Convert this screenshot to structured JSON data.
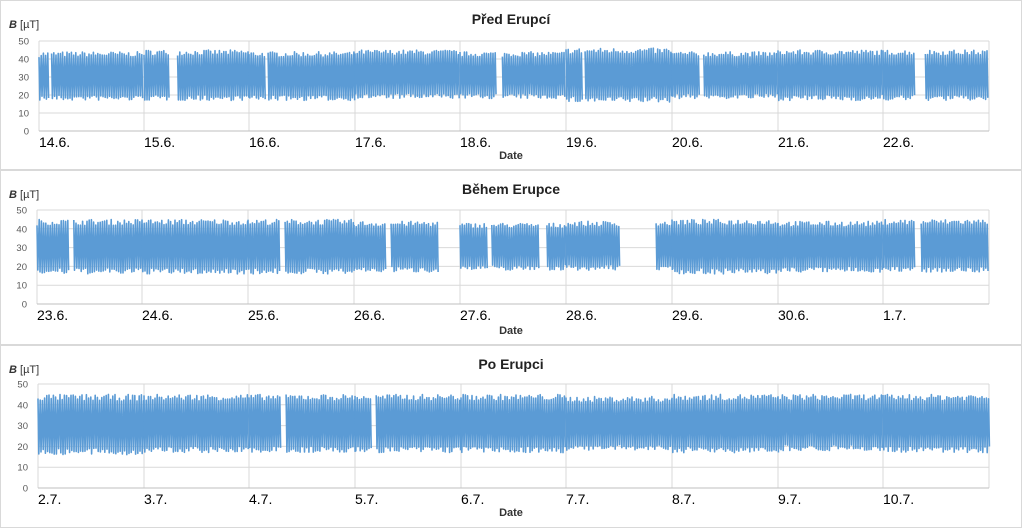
{
  "chart_data": [
    {
      "type": "line",
      "title": "Před Erupcí",
      "ylabel_symbol": "B",
      "ylabel_unit": "[µT]",
      "xlabel": "Date",
      "ylim": [
        0,
        50
      ],
      "yticks": [
        0,
        10,
        20,
        30,
        40,
        50
      ],
      "categories": [
        "14.6.",
        "15.6.",
        "16.6.",
        "17.6.",
        "18.6.",
        "19.6.",
        "20.6.",
        "21.6.",
        "22.6."
      ],
      "series": [
        {
          "color": "#5b9bd5",
          "days": [
            {
              "segments": [
                [
                  0.0,
                  0.1
                ],
                [
                  0.12,
                  1.0
                ]
              ],
              "max": 44,
              "min": 17
            },
            {
              "segments": [
                [
                  0.0,
                  0.25
                ],
                [
                  0.32,
                  1.0
                ]
              ],
              "max": 45,
              "min": 17
            },
            {
              "segments": [
                [
                  0.0,
                  0.15
                ],
                [
                  0.18,
                  1.0
                ]
              ],
              "max": 44,
              "min": 17
            },
            {
              "segments": [
                [
                  0.0,
                  1.0
                ]
              ],
              "max": 45,
              "min": 18
            },
            {
              "segments": [
                [
                  0.0,
                  0.35
                ],
                [
                  0.4,
                  1.0
                ]
              ],
              "max": 44,
              "min": 18
            },
            {
              "segments": [
                [
                  0.0,
                  0.15
                ],
                [
                  0.18,
                  1.0
                ]
              ],
              "max": 46,
              "min": 16
            },
            {
              "segments": [
                [
                  0.0,
                  0.25
                ],
                [
                  0.3,
                  1.0
                ]
              ],
              "max": 44,
              "min": 18
            },
            {
              "segments": [
                [
                  0.0,
                  1.0
                ]
              ],
              "max": 45,
              "min": 17
            },
            {
              "segments": [
                [
                  0.0,
                  0.3
                ],
                [
                  0.4,
                  1.0
                ]
              ],
              "max": 45,
              "min": 17
            }
          ]
        }
      ],
      "grid": true,
      "legend": "none"
    },
    {
      "type": "line",
      "title": "Během Erupce",
      "ylabel_symbol": "B",
      "ylabel_unit": "[µT]",
      "xlabel": "Date",
      "ylim": [
        0,
        50
      ],
      "yticks": [
        0,
        10,
        20,
        30,
        40,
        50
      ],
      "categories": [
        "23.6.",
        "24.6.",
        "25.6.",
        "26.6.",
        "27.6.",
        "28.6.",
        "29.6.",
        "30.6.",
        "1.7."
      ],
      "series": [
        {
          "color": "#5b9bd5",
          "days": [
            {
              "segments": [
                [
                  0.0,
                  0.3
                ],
                [
                  0.35,
                  1.0
                ]
              ],
              "max": 45,
              "min": 16
            },
            {
              "segments": [
                [
                  0.0,
                  1.0
                ]
              ],
              "max": 45,
              "min": 16
            },
            {
              "segments": [
                [
                  0.0,
                  0.3
                ],
                [
                  0.35,
                  1.0
                ]
              ],
              "max": 45,
              "min": 16
            },
            {
              "segments": [
                [
                  0.0,
                  0.3
                ],
                [
                  0.35,
                  0.8
                ]
              ],
              "max": 44,
              "min": 17
            },
            {
              "segments": [
                [
                  0.0,
                  0.25
                ],
                [
                  0.3,
                  0.75
                ],
                [
                  0.82,
                  1.0
                ]
              ],
              "max": 43,
              "min": 18
            },
            {
              "segments": [
                [
                  0.0,
                  0.5
                ],
                [
                  0.85,
                  1.0
                ]
              ],
              "max": 44,
              "min": 18
            },
            {
              "segments": [
                [
                  0.0,
                  1.0
                ]
              ],
              "max": 45,
              "min": 16
            },
            {
              "segments": [
                [
                  0.0,
                  1.0
                ]
              ],
              "max": 44,
              "min": 17
            },
            {
              "segments": [
                [
                  0.0,
                  0.3
                ],
                [
                  0.36,
                  1.0
                ]
              ],
              "max": 45,
              "min": 17
            }
          ]
        }
      ],
      "grid": true,
      "legend": "none"
    },
    {
      "type": "line",
      "title": "Po Erupci",
      "ylabel_symbol": "B",
      "ylabel_unit": "[µT]",
      "xlabel": "Date",
      "ylim": [
        0,
        50
      ],
      "yticks": [
        0,
        10,
        20,
        30,
        40,
        50
      ],
      "categories": [
        "2.7.",
        "3.7.",
        "4.7.",
        "5.7.",
        "6.7.",
        "7.7.",
        "8.7.",
        "9.7.",
        "10.7."
      ],
      "series": [
        {
          "color": "#5b9bd5",
          "days": [
            {
              "segments": [
                [
                  0.0,
                  1.0
                ]
              ],
              "max": 45,
              "min": 16
            },
            {
              "segments": [
                [
                  0.0,
                  1.0
                ]
              ],
              "max": 45,
              "min": 17
            },
            {
              "segments": [
                [
                  0.0,
                  0.3
                ],
                [
                  0.35,
                  1.0
                ]
              ],
              "max": 45,
              "min": 17
            },
            {
              "segments": [
                [
                  0.0,
                  0.15
                ],
                [
                  0.2,
                  1.0
                ]
              ],
              "max": 45,
              "min": 17
            },
            {
              "segments": [
                [
                  0.0,
                  1.0
                ]
              ],
              "max": 45,
              "min": 17
            },
            {
              "segments": [
                [
                  0.0,
                  1.0
                ]
              ],
              "max": 44,
              "min": 18
            },
            {
              "segments": [
                [
                  0.0,
                  1.0
                ]
              ],
              "max": 45,
              "min": 17
            },
            {
              "segments": [
                [
                  0.0,
                  1.0
                ]
              ],
              "max": 45,
              "min": 18
            },
            {
              "segments": [
                [
                  0.0,
                  1.0
                ]
              ],
              "max": 45,
              "min": 17
            }
          ]
        }
      ],
      "grid": true,
      "legend": "none"
    }
  ]
}
